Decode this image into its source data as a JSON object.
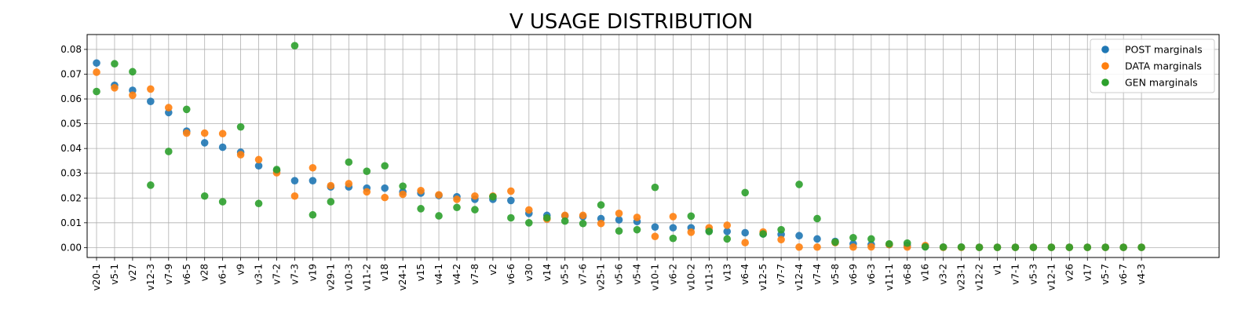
{
  "chart_data": {
    "type": "scatter",
    "title": "V USAGE DISTRIBUTION",
    "xlabel": "",
    "ylabel": "",
    "categories": [
      "v20-1",
      "v5-1",
      "v27",
      "v12-3",
      "v7-9",
      "v6-5",
      "v28",
      "v6-1",
      "v9",
      "v3-1",
      "v7-2",
      "v7-3",
      "v19",
      "v29-1",
      "v10-3",
      "v11-2",
      "v18",
      "v24-1",
      "v15",
      "v4-1",
      "v4-2",
      "v7-8",
      "v2",
      "v6-6",
      "v30",
      "v14",
      "v5-5",
      "v7-6",
      "v25-1",
      "v5-6",
      "v5-4",
      "v10-1",
      "v6-2",
      "v10-2",
      "v11-3",
      "v13",
      "v6-4",
      "v12-5",
      "v7-7",
      "v12-4",
      "v7-4",
      "v5-8",
      "v6-9",
      "v6-3",
      "v11-1",
      "v6-8",
      "v16",
      "v3-2",
      "v23-1",
      "v12-2",
      "v1",
      "v7-1",
      "v5-3",
      "v12-1",
      "v26",
      "v17",
      "v5-7",
      "v6-7",
      "v4-3"
    ],
    "ylim": [
      -0.004,
      0.086
    ],
    "yticks": [
      "0.00",
      "0.01",
      "0.02",
      "0.03",
      "0.04",
      "0.05",
      "0.06",
      "0.07",
      "0.08"
    ],
    "grid": true,
    "legend_position": "top-right",
    "series": [
      {
        "name": "POST marginals",
        "color": "#1f77b4",
        "values": [
          0.0745,
          0.0655,
          0.0635,
          0.059,
          0.0545,
          0.047,
          0.0423,
          0.0405,
          0.0385,
          0.033,
          0.031,
          0.027,
          0.027,
          0.0245,
          0.0245,
          0.024,
          0.024,
          0.0225,
          0.022,
          0.021,
          0.0205,
          0.0195,
          0.0195,
          0.019,
          0.0138,
          0.013,
          0.0128,
          0.0125,
          0.0117,
          0.0112,
          0.0105,
          0.0083,
          0.008,
          0.008,
          0.0068,
          0.0065,
          0.006,
          0.0055,
          0.0053,
          0.0048,
          0.0035,
          0.0025,
          0.0015,
          0.0012,
          0.0012,
          0.0008,
          0.0004,
          0.0002,
          0.0002,
          0.0001,
          0.0001,
          0.0001,
          0.0001,
          0.0001,
          0.0001,
          0.0001,
          0.0001,
          0.0001,
          0.0001
        ]
      },
      {
        "name": "DATA marginals",
        "color": "#ff7f0e",
        "values": [
          0.0708,
          0.0645,
          0.0615,
          0.064,
          0.0565,
          0.0462,
          0.0462,
          0.046,
          0.0375,
          0.0355,
          0.0302,
          0.0208,
          0.0322,
          0.025,
          0.0258,
          0.0225,
          0.0202,
          0.0215,
          0.023,
          0.0213,
          0.0195,
          0.0208,
          0.0208,
          0.0228,
          0.0152,
          0.0115,
          0.013,
          0.013,
          0.0097,
          0.0138,
          0.0122,
          0.0045,
          0.0125,
          0.0062,
          0.008,
          0.009,
          0.002,
          0.0063,
          0.0032,
          0.0002,
          0.0002,
          0.002,
          0.0002,
          0.0003,
          0.0012,
          0.0002,
          0.0008,
          0.0001,
          0.0001,
          0.0001,
          0.0001,
          0.0001,
          0.0001,
          0.0001,
          0.0001,
          0.0001,
          0.0001,
          0.0001,
          0.0001
        ]
      },
      {
        "name": "GEN marginals",
        "color": "#2ca02c",
        "values": [
          0.063,
          0.0742,
          0.071,
          0.0252,
          0.0388,
          0.0558,
          0.0208,
          0.0185,
          0.0487,
          0.0178,
          0.0315,
          0.0815,
          0.0132,
          0.0185,
          0.0345,
          0.0308,
          0.033,
          0.0248,
          0.0157,
          0.0128,
          0.0162,
          0.0153,
          0.0205,
          0.012,
          0.01,
          0.012,
          0.0107,
          0.0097,
          0.0172,
          0.0067,
          0.0072,
          0.0243,
          0.0037,
          0.0127,
          0.0065,
          0.0035,
          0.0222,
          0.0055,
          0.0072,
          0.0255,
          0.0117,
          0.0022,
          0.004,
          0.0035,
          0.0015,
          0.0018,
          0.0003,
          0.0002,
          0.0002,
          0.0001,
          0.0001,
          0.0001,
          0.0001,
          0.0001,
          0.0001,
          0.0001,
          0.0001,
          0.0001,
          0.0001
        ]
      }
    ]
  }
}
